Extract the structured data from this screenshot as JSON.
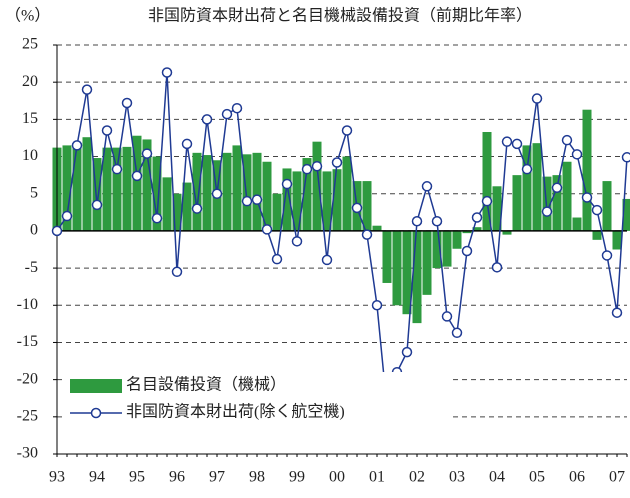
{
  "chart_data": {
    "type": "bar_line",
    "title": "非国防資本財出荷と名目機械設備投資（前期比年率）",
    "y_label": "（%）",
    "categories": [
      "93",
      null,
      null,
      null,
      "94",
      null,
      null,
      null,
      "95",
      null,
      null,
      null,
      "96",
      null,
      null,
      null,
      "97",
      null,
      null,
      null,
      "98",
      null,
      null,
      null,
      "99",
      null,
      null,
      null,
      "00",
      null,
      null,
      null,
      "01",
      null,
      null,
      null,
      "02",
      null,
      null,
      null,
      "03",
      null,
      null,
      null,
      "04",
      null,
      null,
      null,
      "05",
      null,
      null,
      null,
      "06",
      null,
      null,
      null,
      "07",
      null
    ],
    "series": [
      {
        "name": "名目設備投資（機械）",
        "kind": "bar",
        "color": "#2e9a3f",
        "values": [
          11.2,
          11.5,
          11.5,
          12.6,
          9.8,
          11.2,
          11.2,
          11.3,
          12.8,
          12.3,
          10,
          7.2,
          5,
          6.5,
          10.5,
          10.2,
          9.5,
          10.5,
          11.5,
          10.3,
          10.5,
          9.3,
          5,
          8.4,
          8,
          9.8,
          12,
          8,
          8.3,
          10,
          6.7,
          6.7,
          0.7,
          -7,
          -10,
          -11.2,
          -12.4,
          -8.6,
          -5,
          -4.8,
          -2.4,
          -0.3,
          0.5,
          13.3,
          6,
          -0.5,
          7.5,
          11.5,
          11.8,
          7.3,
          7.5,
          9.3,
          1.8,
          16.3,
          -1.2,
          6.7,
          -2.5,
          4.3
        ]
      },
      {
        "name": "非国防資本財出荷(除く航空機)",
        "kind": "line",
        "color": "#1f3a93",
        "values": [
          0,
          2,
          11.5,
          19,
          3.5,
          13.5,
          8.3,
          17.2,
          7.4,
          10.4,
          1.7,
          21.3,
          -5.5,
          11.7,
          3,
          15,
          5,
          15.7,
          16.5,
          4,
          4.2,
          0.2,
          -3.8,
          6.3,
          -1.4,
          8.3,
          8.7,
          -3.9,
          9.2,
          13.5,
          3.1,
          -0.5,
          -10,
          -23.8,
          -19,
          -16.3,
          1.3,
          6,
          1.3,
          -11.5,
          -13.7,
          -2.7,
          1.8,
          4,
          -4.9,
          12,
          11.7,
          8.3,
          17.8,
          2.6,
          5.8,
          12.2,
          10.3,
          4.5,
          2.8,
          -3.3,
          -11,
          9.9
        ]
      }
    ],
    "ylim": [
      -30,
      25
    ],
    "yticks": [
      25,
      20,
      15,
      10,
      5,
      0,
      -5,
      -10,
      -15,
      -20,
      -25,
      -30
    ],
    "grid": true,
    "legend": "lower left"
  }
}
